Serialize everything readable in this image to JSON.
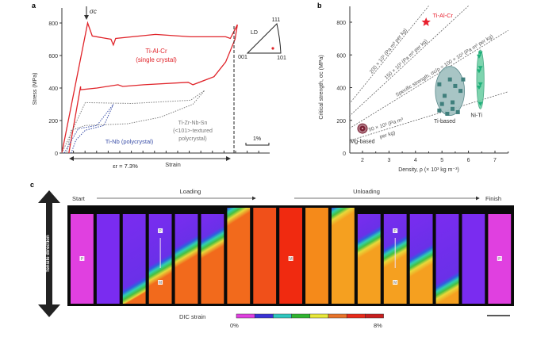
{
  "chart_data": [
    {
      "panel": "a",
      "type": "line",
      "xlabel": "Strain",
      "ylabel": "Stress (MPa)",
      "ylim": [
        0,
        900
      ],
      "yticks": [
        0,
        200,
        400,
        600,
        800
      ],
      "scale_bar": "1%",
      "annotations": {
        "critical_stress": "σc",
        "recoverable_strain": "εr = 7.3%",
        "ipf_label": "LD",
        "ipf_corners": [
          "001",
          "101",
          "111"
        ]
      },
      "series": [
        {
          "name": "Ti-Al-Cr",
          "subname": "(single crystal)",
          "color": "#e0242a",
          "style": "solid",
          "points_strain_percent": [
            [
              0,
              0
            ],
            [
              1.1,
              800
            ],
            [
              1.3,
              720
            ],
            [
              2.1,
              700
            ],
            [
              2.2,
              665
            ],
            [
              2.3,
              705
            ],
            [
              4,
              730
            ],
            [
              5.5,
              715
            ],
            [
              7,
              715
            ],
            [
              7.2,
              705
            ],
            [
              7.5,
              790
            ],
            [
              7.4,
              700
            ],
            [
              7.0,
              560
            ],
            [
              6.5,
              470
            ],
            [
              5.6,
              420
            ],
            [
              5.4,
              435
            ],
            [
              3.5,
              420
            ],
            [
              2.6,
              410
            ],
            [
              2.4,
              420
            ],
            [
              1.5,
              400
            ],
            [
              0.8,
              390
            ],
            [
              0.8,
              410
            ],
            [
              0.3,
              0
            ]
          ]
        },
        {
          "name": "Ti-Zr-Nb-Sn",
          "subname": "(<101>-textured polycrystal)",
          "color": "#7f7f7f",
          "style": "dotted",
          "points_strain_percent": [
            [
              0,
              0
            ],
            [
              1,
              310
            ],
            [
              3,
              305
            ],
            [
              5.5,
              325
            ],
            [
              6.1,
              385
            ],
            [
              5.6,
              300
            ],
            [
              4.2,
              220
            ],
            [
              2.8,
              180
            ],
            [
              1,
              170
            ],
            [
              0.4,
              140
            ],
            [
              0.2,
              0
            ]
          ]
        },
        {
          "name": "Ti-Nb",
          "subname": "(polycrystal)",
          "color": "#3b4fa8",
          "style": "dotted",
          "points_strain_percent": [
            [
              0.1,
              0
            ],
            [
              0.7,
              150
            ],
            [
              1.5,
              170
            ],
            [
              2.2,
              300
            ],
            [
              1.8,
              170
            ],
            [
              1.0,
              140
            ],
            [
              0.6,
              80
            ],
            [
              0.4,
              0
            ]
          ]
        }
      ],
      "inset_point": {
        "label": "orientation",
        "color": "#e0242a"
      }
    },
    {
      "panel": "b",
      "type": "scatter",
      "xlabel": "Density, ρ (× 10³ kg m⁻³)",
      "ylabel": "Critical strength, σc (MPa)",
      "xlim": [
        1.5,
        7.5
      ],
      "ylim": [
        0,
        900
      ],
      "xticks": [
        2,
        3,
        4,
        5,
        6,
        7
      ],
      "yticks": [
        0,
        200,
        400,
        600,
        800
      ],
      "specific_strength_lines": [
        {
          "value": 200,
          "label": "200 × 10³ (Pa m³ per kg)"
        },
        {
          "value": 150,
          "label": "150 × 10³ (Pa m³ per kg)"
        },
        {
          "value": 100,
          "label": "Specific strength, σc/ρ = 100 × 10³ (Pa m³ per kg)"
        },
        {
          "value": 50,
          "label": "50 × 10³ (Pa m³ per kg)"
        }
      ],
      "groups": [
        {
          "name": "Ti-Al-Cr",
          "marker": "star",
          "color": "#e8202e",
          "points": [
            [
              4.4,
              800
            ]
          ]
        },
        {
          "name": "Mg-based",
          "marker": "circle",
          "color": "#7a1f33",
          "points": [
            [
              2.0,
              150
            ]
          ]
        },
        {
          "name": "Ti-based",
          "marker": "square",
          "color": "#3f7f7c",
          "ellipse": {
            "cx": 5.3,
            "cy": 380,
            "rx": 0.55,
            "ry": 150
          },
          "points": [
            [
              4.9,
              420
            ],
            [
              5.1,
              350
            ],
            [
              5.3,
              450
            ],
            [
              5.5,
              410
            ],
            [
              5.7,
              380
            ],
            [
              5.0,
              300
            ],
            [
              5.4,
              310
            ],
            [
              5.8,
              450
            ],
            [
              5.2,
              240
            ],
            [
              5.6,
              250
            ],
            [
              4.9,
              260
            ],
            [
              5.4,
              270
            ]
          ]
        },
        {
          "name": "Ni-Ti",
          "marker": "triangle-down",
          "color": "#1fb07a",
          "ellipse": {
            "cx": 6.45,
            "cy": 450,
            "rx": 0.14,
            "ry": 180
          },
          "points": [
            [
              6.45,
              610
            ],
            [
              6.4,
              590
            ],
            [
              6.45,
              520
            ],
            [
              6.4,
              500
            ],
            [
              6.45,
              420
            ],
            [
              6.4,
              400
            ],
            [
              6.45,
              300
            ]
          ]
        }
      ]
    },
    {
      "panel": "c",
      "type": "heatmap",
      "title": "Tensile direction",
      "stage_labels": {
        "start": "Start",
        "loading": "Loading",
        "unloading": "Unloading",
        "finish": "Finish"
      },
      "colorbar": {
        "label": "DIC strain",
        "min": "0%",
        "max": "8%",
        "colors": [
          "#e040e0",
          "#3a32d6",
          "#2fc7c0",
          "#2fb52f",
          "#e8e83a",
          "#e8742a",
          "#e82a1a",
          "#c81e1e"
        ]
      },
      "frames": [
        {
          "index": 1,
          "transformed_fraction": 0.0,
          "label": "P"
        },
        {
          "index": 2,
          "transformed_fraction": 0.0
        },
        {
          "index": 3,
          "transformed_fraction": 0.1
        },
        {
          "index": 4,
          "transformed_fraction": 0.35,
          "labels": [
            "P",
            "M"
          ]
        },
        {
          "index": 5,
          "transformed_fraction": 0.55
        },
        {
          "index": 6,
          "transformed_fraction": 0.65
        },
        {
          "index": 7,
          "transformed_fraction": 0.95
        },
        {
          "index": 8,
          "transformed_fraction": 1.0
        },
        {
          "index": 9,
          "transformed_fraction": 1.0,
          "label": "M"
        },
        {
          "index": 10,
          "transformed_fraction": 1.0
        },
        {
          "index": 11,
          "transformed_fraction": 0.95
        },
        {
          "index": 12,
          "transformed_fraction": 0.65
        },
        {
          "index": 13,
          "transformed_fraction": 0.55,
          "labels": [
            "P",
            "M"
          ]
        },
        {
          "index": 14,
          "transformed_fraction": 0.45
        },
        {
          "index": 15,
          "transformed_fraction": 0.15
        },
        {
          "index": 16,
          "transformed_fraction": 0.0
        },
        {
          "index": 17,
          "transformed_fraction": 0.0,
          "label": "P"
        }
      ]
    }
  ],
  "panel_labels": {
    "a": "a",
    "b": "b",
    "c": "c"
  }
}
